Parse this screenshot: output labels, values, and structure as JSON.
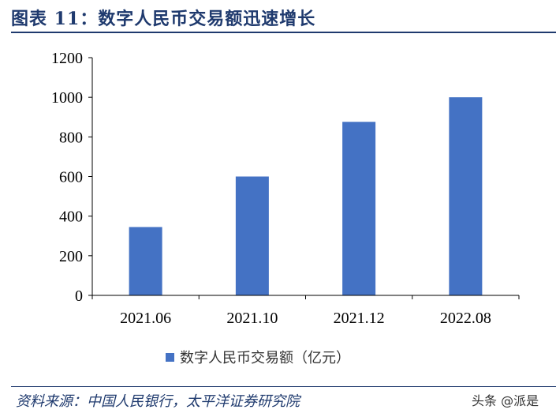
{
  "title": "图表 11：数字人民币交易额迅速增长",
  "source": "资料来源：中国人民银行，太平洋证券研究院",
  "watermark": "头条 @派是",
  "colors": {
    "bar": "#4472c4",
    "title": "#1f3a6e",
    "axis": "#000000"
  },
  "chart_data": {
    "type": "bar",
    "categories": [
      "2021.06",
      "2021.10",
      "2021.12",
      "2022.08"
    ],
    "series": [
      {
        "name": "数字人民币交易额（亿元）",
        "values": [
          345,
          600,
          876,
          1000
        ]
      }
    ],
    "ylim": [
      0,
      1200
    ],
    "yticks": [
      "0",
      "200",
      "400",
      "600",
      "800",
      "1000",
      "1200"
    ],
    "grid": false,
    "legend": "bottom-center"
  }
}
